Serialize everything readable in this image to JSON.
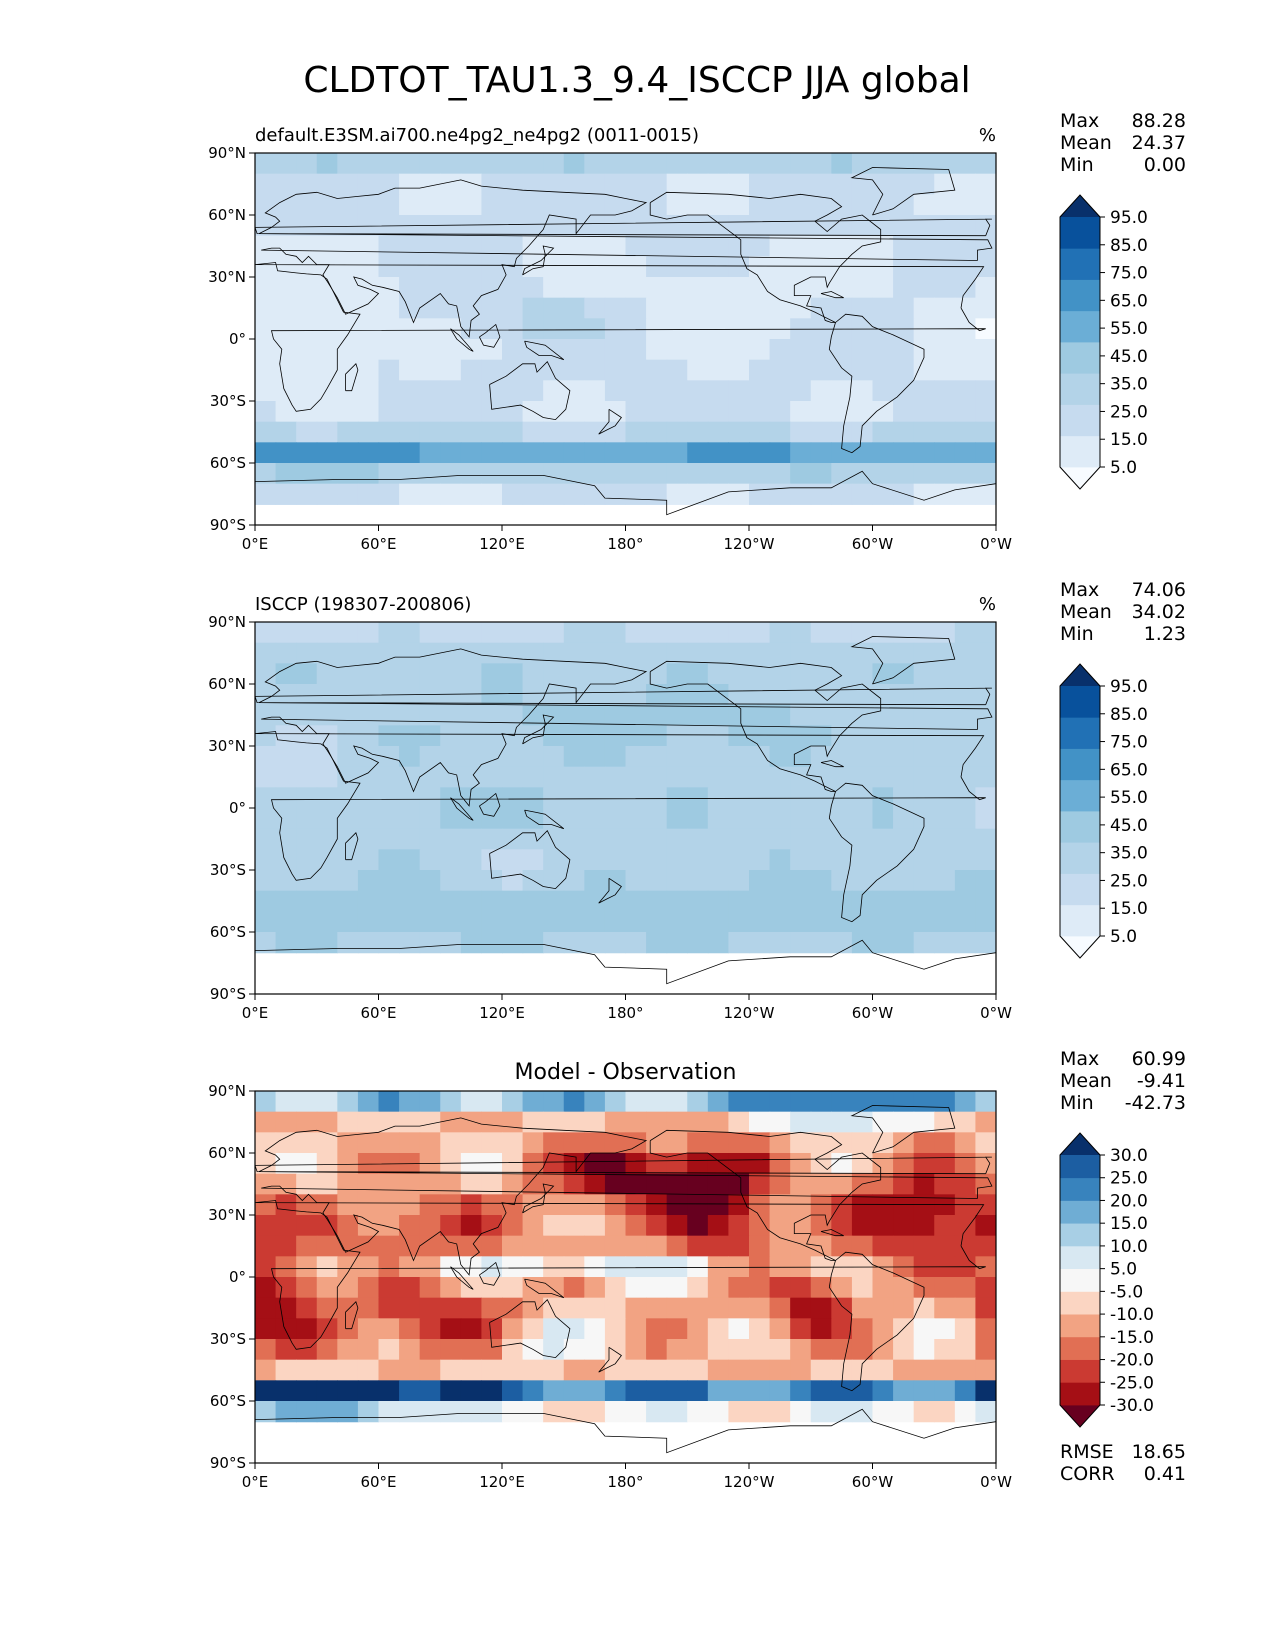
{
  "figure": {
    "title": "CLDTOT_TAU1.3_9.4_ISCCP JJA global"
  },
  "panels": [
    {
      "id": "model",
      "left_title": "default.E3SM.ai700.ne4pg2_ne4pg2 (0011-0015)",
      "center_title": "",
      "units": "%",
      "stats": [
        {
          "label": "Max",
          "value": "88.28"
        },
        {
          "label": "Mean",
          "value": "24.37"
        },
        {
          "label": "Min",
          "value": "0.00"
        }
      ],
      "colorbar": {
        "colors": [
          "#f7fbff",
          "#deebf7",
          "#c6dbef",
          "#b3d3e8",
          "#9ecae1",
          "#6baed6",
          "#4292c6",
          "#2171b5",
          "#08519c",
          "#08306b"
        ],
        "tick_labels": [
          "5.0",
          "15.0",
          "25.0",
          "35.0",
          "45.0",
          "55.0",
          "65.0",
          "75.0",
          "85.0",
          "95.0"
        ]
      },
      "colormap": "blues",
      "scale": [
        0,
        100
      ],
      "missing_south_of_lat": -76
    },
    {
      "id": "obs",
      "left_title": "ISCCP (198307-200806)",
      "center_title": "",
      "units": "%",
      "stats": [
        {
          "label": "Max",
          "value": "74.06"
        },
        {
          "label": "Mean",
          "value": "34.02"
        },
        {
          "label": "Min",
          "value": "1.23"
        }
      ],
      "colorbar": {
        "colors": [
          "#f7fbff",
          "#deebf7",
          "#c6dbef",
          "#b3d3e8",
          "#9ecae1",
          "#6baed6",
          "#4292c6",
          "#2171b5",
          "#08519c",
          "#08306b"
        ],
        "tick_labels": [
          "5.0",
          "15.0",
          "25.0",
          "35.0",
          "45.0",
          "55.0",
          "65.0",
          "75.0",
          "85.0",
          "95.0"
        ]
      },
      "colormap": "blues",
      "scale": [
        0,
        100
      ],
      "missing_south_of_lat": -66
    },
    {
      "id": "diff",
      "left_title": "",
      "center_title": "Model - Observation",
      "units": "",
      "stats": [
        {
          "label": "Max",
          "value": "60.99"
        },
        {
          "label": "Mean",
          "value": "-9.41"
        },
        {
          "label": "Min",
          "value": "-42.73"
        }
      ],
      "colorbar": {
        "colors": [
          "#67001f",
          "#a50f15",
          "#cb3a32",
          "#e16f54",
          "#f2a383",
          "#fbd5c2",
          "#f7f7f7",
          "#d8e8f2",
          "#a8cfe5",
          "#6fadd4",
          "#3883bd",
          "#1c5ea2",
          "#08306b"
        ],
        "tick_labels": [
          "-30.0",
          "-25.0",
          "-20.0",
          "-15.0",
          "-10.0",
          "-5.0",
          "5.0",
          "10.0",
          "15.0",
          "20.0",
          "25.0",
          "30.0"
        ]
      },
      "colormap": "diverging",
      "scale": [
        -35,
        35
      ],
      "missing_south_of_lat": -66,
      "extra_stats": [
        {
          "label": "RMSE",
          "value": "18.65"
        },
        {
          "label": "CORR",
          "value": "0.41"
        }
      ]
    }
  ],
  "axes": {
    "lon_ticks": [
      "0°E",
      "60°E",
      "120°E",
      "180°",
      "120°W",
      "60°W",
      "0°W"
    ],
    "lat_ticks": [
      "90°N",
      "60°N",
      "30°N",
      "0°",
      "30°S",
      "60°S",
      "90°S"
    ]
  }
}
